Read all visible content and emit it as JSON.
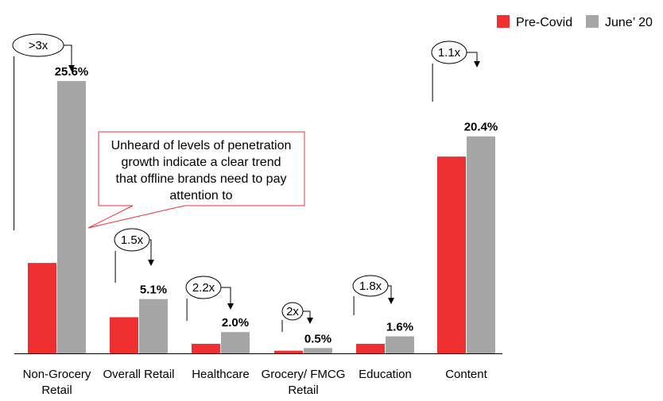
{
  "chart_data": {
    "type": "bar",
    "categories": [
      "Non-Grocery Retail",
      "Overall Retail",
      "Healthcare",
      "Grocery/ FMCG Retail",
      "Education",
      "Content"
    ],
    "category_lines": [
      [
        "Non-Grocery",
        "Retail"
      ],
      [
        "Overall Retail"
      ],
      [
        "Healthcare"
      ],
      [
        "Grocery/ FMCG",
        "Retail"
      ],
      [
        "Education"
      ],
      [
        "Content"
      ]
    ],
    "series": [
      {
        "name": "Pre-Covid",
        "color": "#ee3033",
        "values": [
          8.5,
          3.4,
          0.9,
          0.25,
          0.9,
          18.5
        ]
      },
      {
        "name": "June’ 20",
        "color": "#a6a6a6",
        "values": [
          25.6,
          5.1,
          2.0,
          0.5,
          1.6,
          20.4
        ]
      }
    ],
    "data_labels": [
      "25.6%",
      "5.1%",
      "2.0%",
      "0.5%",
      "1.6%",
      "20.4%"
    ],
    "growth_labels": [
      ">3x",
      "1.5x",
      "2.2x",
      "2x",
      "1.8x",
      "1.1x"
    ],
    "ylim": [
      0,
      26.5
    ],
    "grid": false,
    "legend_position": "top-right",
    "annotation": "Unheard of levels of penetration growth indicate a clear trend that offline brands need to pay attention to",
    "annotation_lines": [
      "Unheard of levels of penetration",
      "growth indicate a clear trend",
      "that offline brands need to pay",
      "attention to"
    ]
  }
}
